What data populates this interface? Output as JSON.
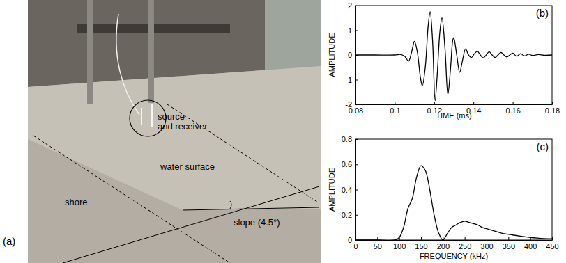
{
  "photo_panel": {
    "label": "(a)",
    "annotations": [
      {
        "lines": [
          "source",
          "and receiver"
        ]
      },
      {
        "lines": [
          "water surface"
        ]
      },
      {
        "lines": [
          "shore"
        ]
      },
      {
        "lines": [
          "slope (4.5°)"
        ]
      }
    ]
  },
  "chart_data": [
    {
      "type": "line",
      "annotations": [
        "(b)"
      ],
      "x_label": "TIME (ms)",
      "y_label": "AMPLITUDE",
      "color": "#000000",
      "x": [
        0.08,
        0.09,
        0.1,
        0.103,
        0.105,
        0.107,
        0.1085,
        0.11,
        0.1115,
        0.113,
        0.114,
        0.1155,
        0.117,
        0.118,
        0.1192,
        0.1205,
        0.1215,
        0.123,
        0.124,
        0.1255,
        0.127,
        0.1283,
        0.1295,
        0.13,
        0.1315,
        0.133,
        0.1345,
        0.136,
        0.1375,
        0.139,
        0.1405,
        0.142,
        0.1435,
        0.145,
        0.1465,
        0.148,
        0.1495,
        0.151,
        0.1525,
        0.154,
        0.1555,
        0.157,
        0.1585,
        0.16,
        0.162,
        0.164,
        0.166,
        0.168,
        0.17,
        0.173,
        0.176,
        0.18
      ],
      "values": [
        0,
        0,
        0,
        0.02,
        -0.05,
        -0.25,
        0.1,
        0.55,
        0.1,
        -0.9,
        -1.25,
        -0.5,
        1.2,
        1.75,
        0.6,
        -1.85,
        -0.9,
        1.0,
        1.5,
        0.3,
        -1.6,
        -0.6,
        0.6,
        0.7,
        0.0,
        -0.7,
        -0.2,
        0.25,
        0.0,
        -0.1,
        0.05,
        0.15,
        0.0,
        -0.12,
        0.0,
        0.13,
        0.0,
        -0.1,
        0.0,
        0.1,
        0.0,
        -0.08,
        0.0,
        0.07,
        -0.05,
        0.05,
        -0.04,
        0.03,
        -0.02,
        0.02,
        -0.01,
        0
      ],
      "xlim": [
        0.08,
        0.18
      ],
      "xticks": [
        0.08,
        0.1,
        0.12,
        0.14,
        0.16,
        0.18
      ],
      "ylim": [
        -2,
        2
      ],
      "yticks": [
        -2,
        -1,
        0,
        1,
        2
      ]
    },
    {
      "type": "line",
      "annotations": [
        "(c)"
      ],
      "x_label": "FREQUENCY (kHz)",
      "y_label": "AMPLITUDE",
      "color": "#000000",
      "x": [
        0,
        50,
        90,
        100,
        110,
        120,
        130,
        140,
        150,
        160,
        170,
        180,
        190,
        200,
        210,
        220,
        230,
        240,
        250,
        260,
        270,
        280,
        290,
        300,
        320,
        340,
        360,
        380,
        400,
        420,
        450
      ],
      "values": [
        0,
        0,
        0,
        0.02,
        0.1,
        0.25,
        0.33,
        0.5,
        0.59,
        0.55,
        0.4,
        0.2,
        0.06,
        0.0,
        0.05,
        0.1,
        0.12,
        0.14,
        0.15,
        0.14,
        0.13,
        0.12,
        0.1,
        0.09,
        0.07,
        0.05,
        0.04,
        0.03,
        0.02,
        0.015,
        0.01
      ],
      "xlim": [
        0,
        450
      ],
      "xticks": [
        0,
        50,
        100,
        150,
        200,
        250,
        300,
        350,
        400,
        450
      ],
      "ylim": [
        0,
        0.8
      ],
      "yticks": [
        0,
        0.2,
        0.4,
        0.6,
        0.8
      ]
    }
  ]
}
